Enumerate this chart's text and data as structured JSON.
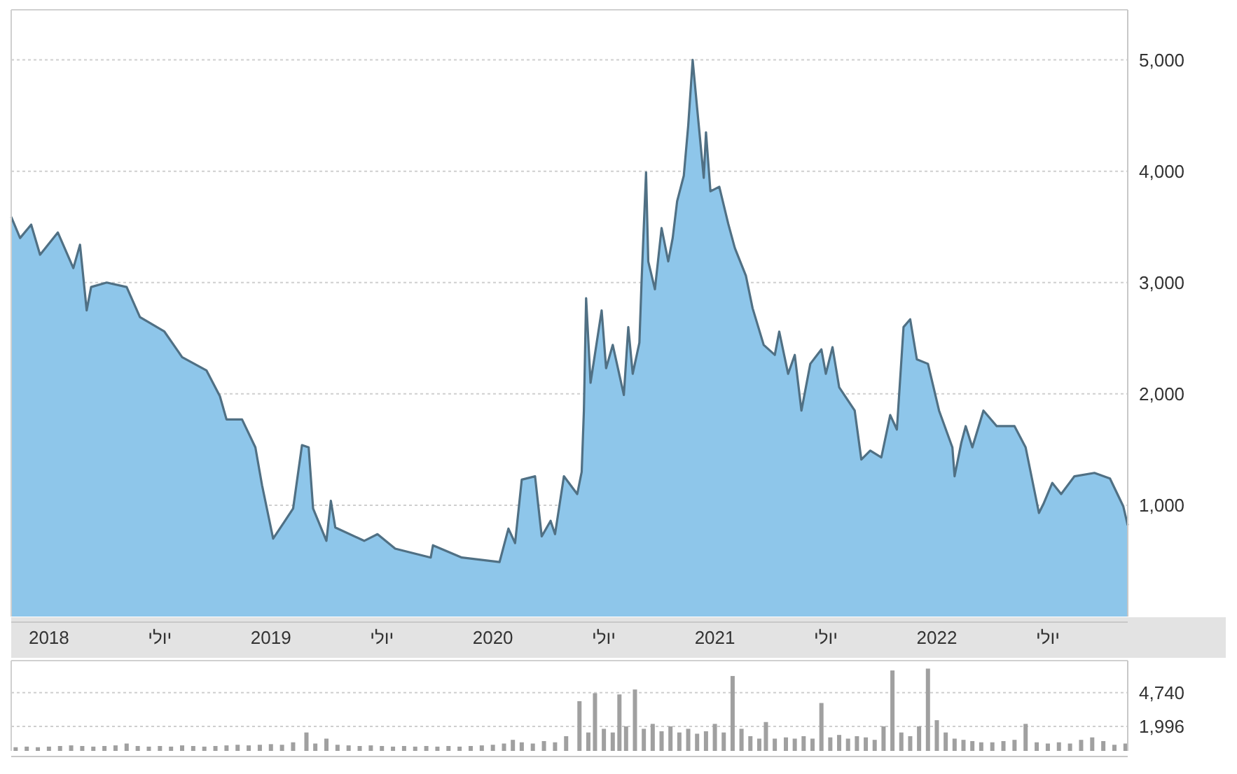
{
  "chart_data": [
    {
      "type": "area",
      "x": [
        2017.83,
        2017.87,
        2017.92,
        2017.96,
        2018.04,
        2018.11,
        2018.14,
        2018.17,
        2018.19,
        2018.26,
        2018.35,
        2018.41,
        2018.52,
        2018.6,
        2018.71,
        2018.77,
        2018.8,
        2018.87,
        2018.93,
        2018.96,
        2019.01,
        2019.06,
        2019.1,
        2019.14,
        2019.17,
        2019.19,
        2019.25,
        2019.27,
        2019.29,
        2019.42,
        2019.48,
        2019.56,
        2019.72,
        2019.73,
        2019.86,
        2020.03,
        2020.07,
        2020.1,
        2020.13,
        2020.19,
        2020.22,
        2020.26,
        2020.28,
        2020.32,
        2020.38,
        2020.4,
        2020.41,
        2020.42,
        2020.44,
        2020.49,
        2020.51,
        2020.54,
        2020.59,
        2020.61,
        2020.63,
        2020.66,
        2020.67,
        2020.69,
        2020.7,
        2020.73,
        2020.76,
        2020.79,
        2020.81,
        2020.83,
        2020.86,
        2020.88,
        2020.9,
        2020.92,
        2020.95,
        2020.96,
        2020.98,
        2021.02,
        2021.06,
        2021.09,
        2021.14,
        2021.17,
        2021.22,
        2021.27,
        2021.29,
        2021.33,
        2021.36,
        2021.39,
        2021.43,
        2021.48,
        2021.5,
        2021.53,
        2021.56,
        2021.63,
        2021.66,
        2021.7,
        2021.75,
        2021.79,
        2021.82,
        2021.85,
        2021.88,
        2021.91,
        2021.96,
        2022.01,
        2022.07,
        2022.08,
        2022.11,
        2022.13,
        2022.16,
        2022.21,
        2022.27,
        2022.35,
        2022.4,
        2022.46,
        2022.48,
        2022.52,
        2022.56,
        2022.62,
        2022.71,
        2022.78,
        2022.84,
        2022.86
      ],
      "series": [
        {
          "color": "#8ec6ea",
          "values": [
            3590,
            3400,
            3520,
            3250,
            3450,
            3130,
            3340,
            2750,
            2960,
            3000,
            2960,
            2690,
            2560,
            2330,
            2210,
            1980,
            1770,
            1770,
            1520,
            1180,
            700,
            850,
            970,
            1540,
            1520,
            970,
            680,
            1040,
            800,
            680,
            740,
            610,
            530,
            640,
            530,
            490,
            790,
            660,
            1230,
            1260,
            720,
            860,
            740,
            1260,
            1100,
            1300,
            1850,
            2860,
            2100,
            2750,
            2230,
            2440,
            1990,
            2600,
            2180,
            2460,
            3020,
            3990,
            3190,
            2940,
            3490,
            3190,
            3400,
            3730,
            3960,
            4410,
            5000,
            4570,
            3940,
            4350,
            3820,
            3860,
            3530,
            3310,
            3060,
            2770,
            2440,
            2350,
            2560,
            2180,
            2350,
            1850,
            2270,
            2400,
            2180,
            2420,
            2060,
            1850,
            1410,
            1490,
            1430,
            1810,
            1680,
            2600,
            2670,
            2310,
            2270,
            1850,
            1520,
            1260,
            1560,
            1710,
            1520,
            1850,
            1710,
            1710,
            1520,
            930,
            1010,
            1200,
            1100,
            1260,
            1290,
            1240,
            990,
            820
          ]
        }
      ],
      "xlim": [
        2017.83,
        2022.86
      ],
      "xticks": [
        {
          "value": 2018,
          "label": "2018"
        },
        {
          "value": 2018.5,
          "label": "יולי"
        },
        {
          "value": 2019,
          "label": "2019"
        },
        {
          "value": 2019.5,
          "label": "יולי"
        },
        {
          "value": 2020,
          "label": "2020"
        },
        {
          "value": 2020.5,
          "label": "יולי"
        },
        {
          "value": 2021,
          "label": "2021"
        },
        {
          "value": 2021.5,
          "label": "יולי"
        },
        {
          "value": 2022,
          "label": "2022"
        },
        {
          "value": 2022.5,
          "label": "יולי"
        }
      ],
      "ylim": [
        0,
        5450
      ],
      "yticks": [
        {
          "value": 1000,
          "label": "1,000"
        },
        {
          "value": 2000,
          "label": "2,000"
        },
        {
          "value": 3000,
          "label": "3,000"
        },
        {
          "value": 4000,
          "label": "4,000"
        },
        {
          "value": 5000,
          "label": "5,000"
        }
      ],
      "grid": "y"
    },
    {
      "type": "bar",
      "x": [
        2017.85,
        2017.9,
        2017.95,
        2018.0,
        2018.05,
        2018.1,
        2018.15,
        2018.2,
        2018.25,
        2018.3,
        2018.35,
        2018.4,
        2018.45,
        2018.5,
        2018.55,
        2018.6,
        2018.65,
        2018.7,
        2018.75,
        2018.8,
        2018.85,
        2018.9,
        2018.95,
        2019.0,
        2019.05,
        2019.1,
        2019.16,
        2019.2,
        2019.25,
        2019.3,
        2019.35,
        2019.4,
        2019.45,
        2019.5,
        2019.55,
        2019.6,
        2019.65,
        2019.7,
        2019.75,
        2019.8,
        2019.85,
        2019.9,
        2019.95,
        2020.0,
        2020.05,
        2020.09,
        2020.13,
        2020.18,
        2020.23,
        2020.28,
        2020.33,
        2020.39,
        2020.43,
        2020.46,
        2020.5,
        2020.54,
        2020.57,
        2020.6,
        2020.64,
        2020.68,
        2020.72,
        2020.76,
        2020.8,
        2020.84,
        2020.88,
        2020.92,
        2020.96,
        2021.0,
        2021.04,
        2021.08,
        2021.12,
        2021.16,
        2021.2,
        2021.23,
        2021.27,
        2021.32,
        2021.36,
        2021.4,
        2021.44,
        2021.48,
        2021.52,
        2021.56,
        2021.6,
        2021.64,
        2021.68,
        2021.72,
        2021.76,
        2021.8,
        2021.84,
        2021.88,
        2021.92,
        2021.96,
        2022.0,
        2022.04,
        2022.08,
        2022.12,
        2022.16,
        2022.2,
        2022.25,
        2022.3,
        2022.35,
        2022.4,
        2022.45,
        2022.5,
        2022.55,
        2022.6,
        2022.65,
        2022.7,
        2022.75,
        2022.8,
        2022.85
      ],
      "series": [
        {
          "color": "#a0a0a0",
          "values": [
            300,
            350,
            300,
            350,
            400,
            450,
            400,
            350,
            400,
            450,
            600,
            400,
            350,
            400,
            350,
            450,
            400,
            350,
            400,
            450,
            500,
            450,
            500,
            550,
            500,
            700,
            1500,
            600,
            1000,
            500,
            450,
            400,
            450,
            400,
            350,
            400,
            350,
            400,
            350,
            400,
            350,
            400,
            450,
            500,
            600,
            900,
            700,
            600,
            800,
            700,
            1200,
            4050,
            1500,
            4700,
            1800,
            1500,
            4600,
            2000,
            5000,
            1800,
            2200,
            1600,
            2000,
            1500,
            1800,
            1400,
            1600,
            2200,
            1500,
            6100,
            1800,
            1200,
            1000,
            2350,
            1000,
            1100,
            1000,
            1200,
            1000,
            3900,
            1100,
            1300,
            1000,
            1200,
            1100,
            900,
            2000,
            6550,
            1500,
            1200,
            2000,
            6700,
            2500,
            1500,
            1000,
            900,
            800,
            700,
            700,
            800,
            900,
            2200,
            700,
            600,
            700,
            600,
            900,
            1100,
            800,
            500,
            600
          ]
        }
      ],
      "xlim": [
        2017.83,
        2022.86
      ],
      "ylim": [
        0,
        7350
      ],
      "yticks": [
        {
          "value": 1996,
          "label": "1,996"
        },
        {
          "value": 4740,
          "label": "4,740"
        }
      ],
      "grid": "y",
      "tick_labels": "y"
    }
  ]
}
